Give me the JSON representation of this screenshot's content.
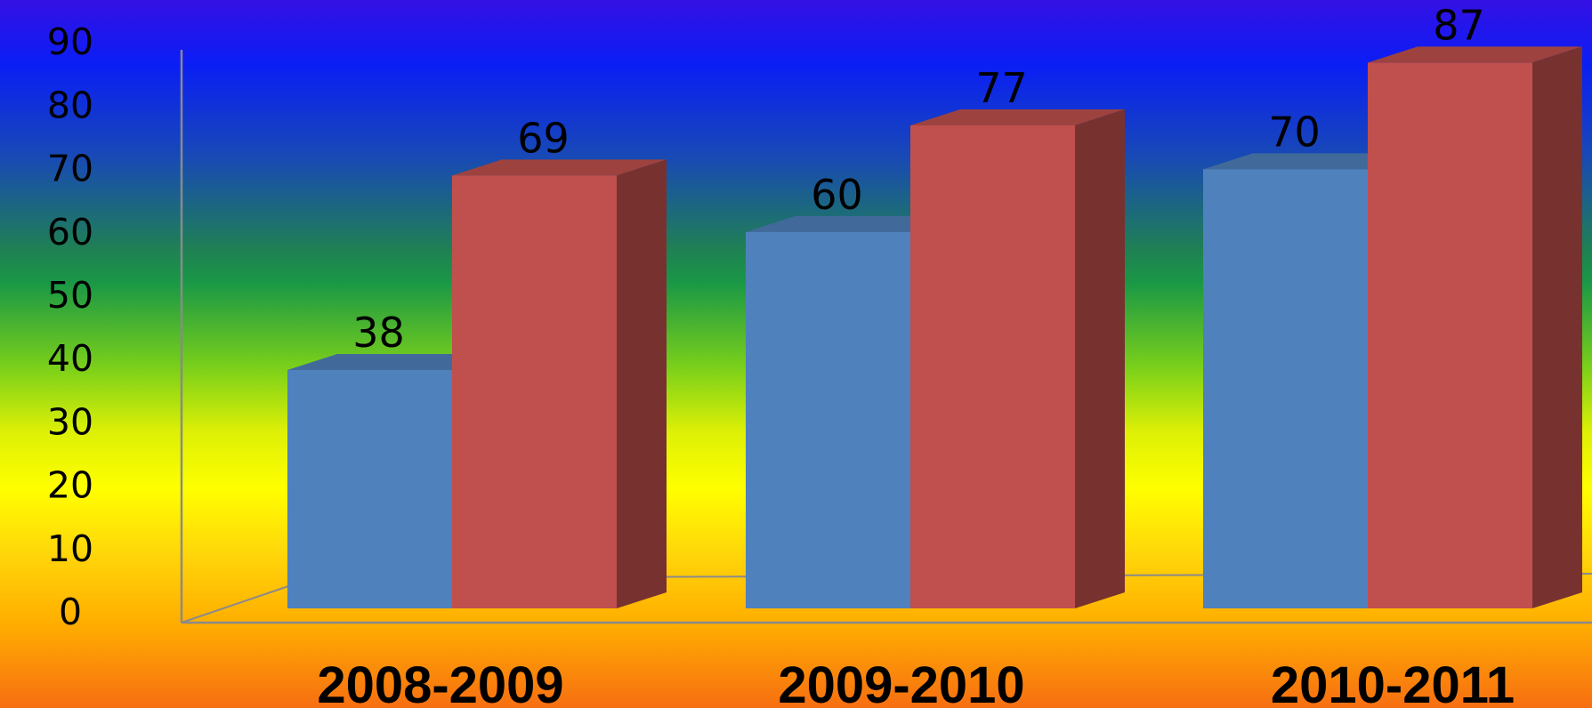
{
  "chart_data": {
    "type": "bar",
    "categories": [
      "2008-2009",
      "2009-2010",
      "2010-2011"
    ],
    "series": [
      {
        "values": [
          38,
          60,
          70
        ],
        "color": "#4f81bd"
      },
      {
        "values": [
          69,
          77,
          87
        ],
        "color": "#c0504d"
      }
    ],
    "data_labels": [
      [
        "38",
        "60",
        "70"
      ],
      [
        "69",
        "77",
        "87"
      ]
    ],
    "y_ticks": [
      "0",
      "10",
      "20",
      "30",
      "40",
      "50",
      "60",
      "70",
      "80",
      "90"
    ],
    "ylim": [
      0,
      90
    ],
    "style": "3d-clustered-column",
    "grid": false,
    "legend": "none",
    "title": "",
    "xlabel": "",
    "ylabel": ""
  }
}
